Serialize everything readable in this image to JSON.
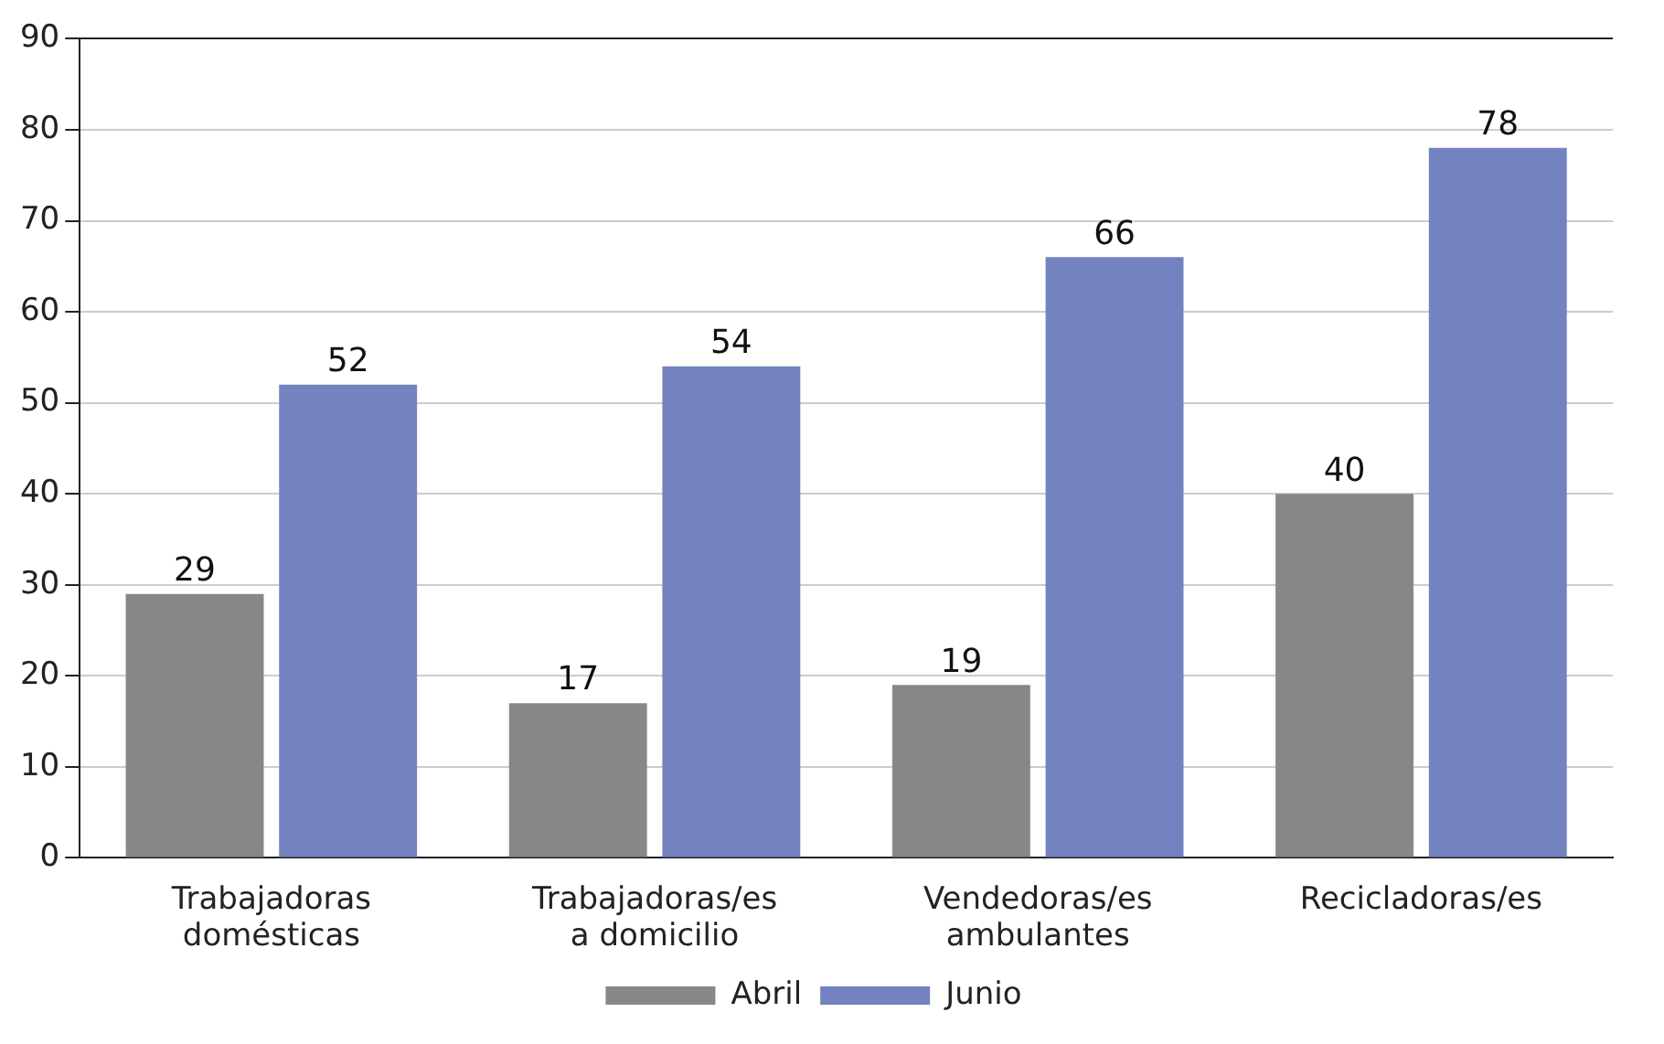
{
  "chart_data": {
    "type": "bar",
    "categories": [
      "Trabajadoras domésticas",
      "Trabajadoras/es a domicilio",
      "Vendedoras/es ambulantes",
      "Recicladoras/es"
    ],
    "series": [
      {
        "name": "Abril",
        "color": "#878885",
        "values": [
          29,
          17,
          19,
          40
        ]
      },
      {
        "name": "Junio",
        "color": "#7383bf",
        "values": [
          52,
          54,
          66,
          78
        ]
      }
    ],
    "ylim": [
      0,
      90
    ],
    "yticks": [
      0,
      10,
      20,
      30,
      40,
      50,
      60,
      70,
      80,
      90
    ],
    "grid": "y",
    "legend": "bottom",
    "data_labels": true
  }
}
